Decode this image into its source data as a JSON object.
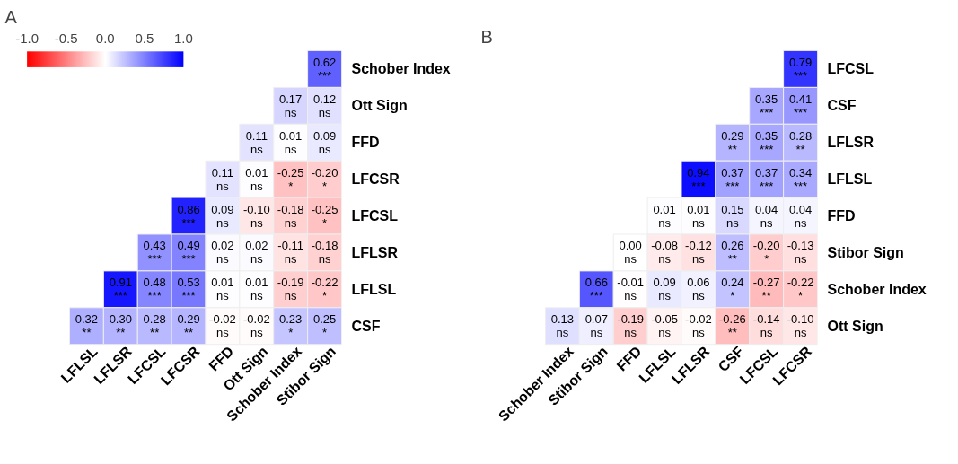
{
  "chart_data": [
    {
      "type": "heatmap",
      "title": "A",
      "clim": [
        -1,
        1
      ],
      "cticks": [
        {
          "value": -1,
          "label": "-1.0"
        },
        {
          "value": -0.5,
          "label": "-0.5"
        },
        {
          "value": 0,
          "label": "0.0"
        },
        {
          "value": 0.5,
          "label": "0.5"
        },
        {
          "value": 1,
          "label": "1.0"
        }
      ],
      "categories": [
        "LFLSL",
        "LFLSR",
        "LFCSL",
        "LFCSR",
        "FFD",
        "Ott Sign",
        "Schober Index",
        "Stibor Sign"
      ],
      "y_categories": [
        "Schober Index",
        "Ott Sign",
        "FFD",
        "LFCSR",
        "LFCSL",
        "LFLSR",
        "LFLSL",
        "CSF"
      ],
      "cells": [
        [
          null,
          null,
          null,
          null,
          null,
          null,
          null,
          0.62
        ],
        [
          null,
          null,
          null,
          null,
          null,
          null,
          0.17,
          0.12
        ],
        [
          null,
          null,
          null,
          null,
          null,
          0.11,
          0.01,
          0.09
        ],
        [
          null,
          null,
          null,
          null,
          0.11,
          0.01,
          -0.25,
          -0.2
        ],
        [
          null,
          null,
          null,
          0.86,
          0.09,
          -0.1,
          -0.18,
          -0.25
        ],
        [
          null,
          null,
          0.43,
          0.49,
          0.02,
          0.02,
          -0.11,
          -0.18
        ],
        [
          null,
          0.91,
          0.48,
          0.53,
          0.01,
          0.01,
          -0.19,
          -0.22
        ],
        [
          0.32,
          0.3,
          0.28,
          0.29,
          -0.02,
          -0.02,
          0.23,
          0.25
        ]
      ],
      "cell_labels": [
        [
          null,
          null,
          null,
          null,
          null,
          null,
          null,
          "0.62\n***"
        ],
        [
          null,
          null,
          null,
          null,
          null,
          null,
          "0.17\nns",
          "0.12\nns"
        ],
        [
          null,
          null,
          null,
          null,
          null,
          "0.11\nns",
          "0.01\nns",
          "0.09\nns"
        ],
        [
          null,
          null,
          null,
          null,
          "0.11\nns",
          "0.01\nns",
          "-0.25\n*",
          "-0.20\n*"
        ],
        [
          null,
          null,
          null,
          "0.86\n***",
          "0.09\nns",
          "-0.10\nns",
          "-0.18\nns",
          "-0.25\n*"
        ],
        [
          null,
          null,
          "0.43\n***",
          "0.49\n***",
          "0.02\nns",
          "0.02\nns",
          "-0.11\nns",
          "-0.18\nns"
        ],
        [
          null,
          "0.91\n***",
          "0.48\n***",
          "0.53\n***",
          "0.01\nns",
          "0.01\nns",
          "-0.19\nns",
          "-0.22\n*"
        ],
        [
          "0.32\n**",
          "0.30\n**",
          "0.28\n**",
          "0.29\n**",
          "-0.02\nns",
          "-0.02\nns",
          "0.23\n*",
          "0.25\n*"
        ]
      ]
    },
    {
      "type": "heatmap",
      "title": "B",
      "categories": [
        "Schober Index",
        "Stibor Sign",
        "FFD",
        "LFLSL",
        "LFLSR",
        "CSF",
        "LFCSL",
        "LFCSR"
      ],
      "y_categories": [
        "LFCSL",
        "CSF",
        "LFLSR",
        "LFLSL",
        "FFD",
        "Stibor Sign",
        "Schober Index",
        "Ott Sign"
      ],
      "cells": [
        [
          null,
          null,
          null,
          null,
          null,
          null,
          null,
          0.79
        ],
        [
          null,
          null,
          null,
          null,
          null,
          null,
          0.35,
          0.41
        ],
        [
          null,
          null,
          null,
          null,
          null,
          0.29,
          0.35,
          0.28
        ],
        [
          null,
          null,
          null,
          null,
          0.94,
          0.37,
          0.37,
          0.34
        ],
        [
          null,
          null,
          null,
          0.01,
          0.01,
          0.15,
          0.04,
          0.04
        ],
        [
          null,
          null,
          0.0,
          -0.08,
          -0.12,
          0.26,
          -0.2,
          -0.13
        ],
        [
          null,
          0.66,
          -0.01,
          0.09,
          0.06,
          0.24,
          -0.27,
          -0.22
        ],
        [
          0.13,
          0.07,
          -0.19,
          -0.05,
          -0.02,
          -0.26,
          -0.14,
          -0.1
        ]
      ],
      "cell_labels": [
        [
          null,
          null,
          null,
          null,
          null,
          null,
          null,
          "0.79\n***"
        ],
        [
          null,
          null,
          null,
          null,
          null,
          null,
          "0.35\n***",
          "0.41\n***"
        ],
        [
          null,
          null,
          null,
          null,
          null,
          "0.29\n**",
          "0.35\n***",
          "0.28\n**"
        ],
        [
          null,
          null,
          null,
          null,
          "0.94\n***",
          "0.37\n***",
          "0.37\n***",
          "0.34\n***"
        ],
        [
          null,
          null,
          null,
          "0.01\nns",
          "0.01\nns",
          "0.15\nns",
          "0.04\nns",
          "0.04\nns"
        ],
        [
          null,
          null,
          "0.00\nns",
          "-0.08\nns",
          "-0.12\nns",
          "0.26\n**",
          "-0.20\n*",
          "-0.13\nns"
        ],
        [
          null,
          "0.66\n***",
          "-0.01\nns",
          "0.09\nns",
          "0.06\nns",
          "0.24\n*",
          "-0.27\n**",
          "-0.22\n*"
        ],
        [
          "0.13\nns",
          "0.07\nns",
          "-0.19\nns",
          "-0.05\nns",
          "-0.02\nns",
          "-0.26\n**",
          "-0.14\nns",
          "-0.10\nns"
        ]
      ]
    }
  ]
}
